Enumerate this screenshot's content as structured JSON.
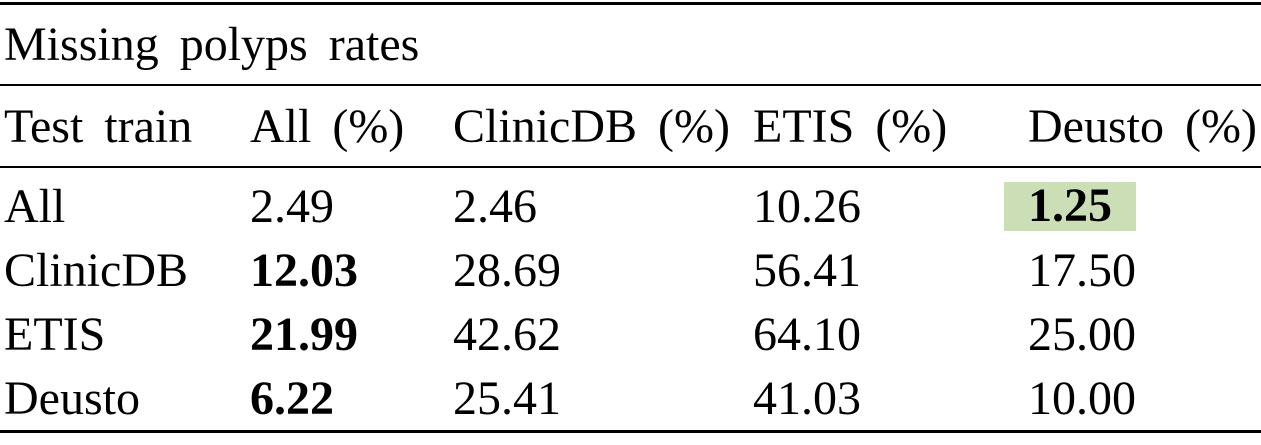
{
  "table": {
    "title": "Missing polyps rates",
    "columns": [
      "Test train",
      "All (%)",
      "ClinicDB (%)",
      "ETIS (%)",
      "Deusto (%)"
    ],
    "rows": [
      {
        "label": "All",
        "values": [
          "2.49",
          "2.46",
          "10.26",
          "1.25"
        ]
      },
      {
        "label": "ClinicDB",
        "values": [
          "12.03",
          "28.69",
          "56.41",
          "17.50"
        ]
      },
      {
        "label": "ETIS",
        "values": [
          "21.99",
          "42.62",
          "64.10",
          "25.00"
        ]
      },
      {
        "label": "Deusto",
        "values": [
          "6.22",
          "25.41",
          "41.03",
          "10.00"
        ]
      }
    ],
    "highlight_color": "#cbdeb6",
    "text_color": "#000000"
  }
}
